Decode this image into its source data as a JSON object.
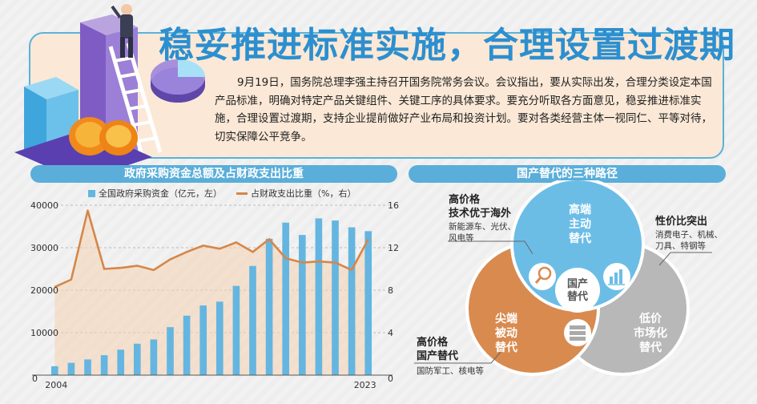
{
  "headline": "稳妥推进标准实施，合理设置过渡期",
  "intro": "9月19日，国务院总理李强主持召开国务院常务会议。会议指出，要从实际出发，合理分类设定本国产品标准，明确对特定产品关键组件、关键工序的具体要求。要充分听取各方面意见，稳妥推进标准实施，合理设置过渡期，支持企业提前做好产业布局和投资计划。要对各类经营主体一视同仁、平等对待，切实保障公平竞争。",
  "left_banner": "政府采购资金总额及占财政支出比重",
  "right_banner": "国产替代的三种路径",
  "legend": {
    "bar": "全国政府采购资金（亿元，左）",
    "line": "占财政支出比重（%，右）"
  },
  "colors": {
    "bar": "#64b6e0",
    "line": "#d4874a",
    "title": "#2c8fcf",
    "circle_top": "#6cbde6",
    "circle_left": "#d98a4f",
    "circle_right": "#b8b8b8"
  },
  "chart_data": {
    "type": "bar",
    "x": [
      2004,
      2005,
      2006,
      2007,
      2008,
      2009,
      2010,
      2011,
      2012,
      2013,
      2014,
      2015,
      2016,
      2017,
      2018,
      2019,
      2020,
      2021,
      2022,
      2023
    ],
    "x_tick_labels": [
      "2004",
      "2023"
    ],
    "series": [
      {
        "name": "全国政府采购资金（亿元，左）",
        "type": "bar",
        "axis": "left",
        "values": [
          2100,
          2900,
          3700,
          4700,
          6000,
          7400,
          8400,
          11300,
          14000,
          16400,
          17300,
          21000,
          25700,
          32100,
          35900,
          33000,
          36900,
          36400,
          34800,
          33900
        ]
      },
      {
        "name": "占财政支出比重（%，右）",
        "type": "line",
        "axis": "right",
        "values": [
          8.3,
          9.0,
          15.5,
          10.0,
          10.1,
          10.3,
          9.9,
          10.9,
          11.6,
          12.2,
          11.9,
          12.5,
          11.6,
          12.8,
          11.0,
          10.6,
          10.7,
          10.6,
          9.9,
          12.8
        ]
      }
    ],
    "y_left": {
      "ticks": [
        0,
        10000,
        20000,
        30000,
        40000
      ],
      "tick_labels": [
        "0",
        "10000",
        "20000",
        "30000",
        "40000"
      ],
      "range": [
        0,
        40000
      ]
    },
    "y_right": {
      "ticks": [
        0,
        4,
        8,
        12,
        16
      ],
      "tick_labels": [
        "0",
        "4",
        "8",
        "12",
        "16"
      ],
      "range": [
        0,
        16
      ]
    },
    "grid": "horizontal dashed",
    "legend_placement": "top"
  },
  "venn": {
    "top_circle": "高端\n主动\n替代",
    "left_circle": "尖端\n被动\n替代",
    "right_circle": "低价\n市场化\n替代",
    "center": "国产\n替代",
    "callouts": {
      "top_left": {
        "title": "高价格\n技术优于海外",
        "desc": "新能源车、光伏、\n风电等"
      },
      "top_right": {
        "title": "性价比突出",
        "desc": "消费电子、机械、\n刀具、特钢等"
      },
      "bottom_left": {
        "title": "高价格\n国产替代",
        "desc": "国防军工、核电等"
      }
    },
    "icons": [
      "magnifier-icon",
      "bar-chart-icon",
      "server-icon"
    ]
  }
}
